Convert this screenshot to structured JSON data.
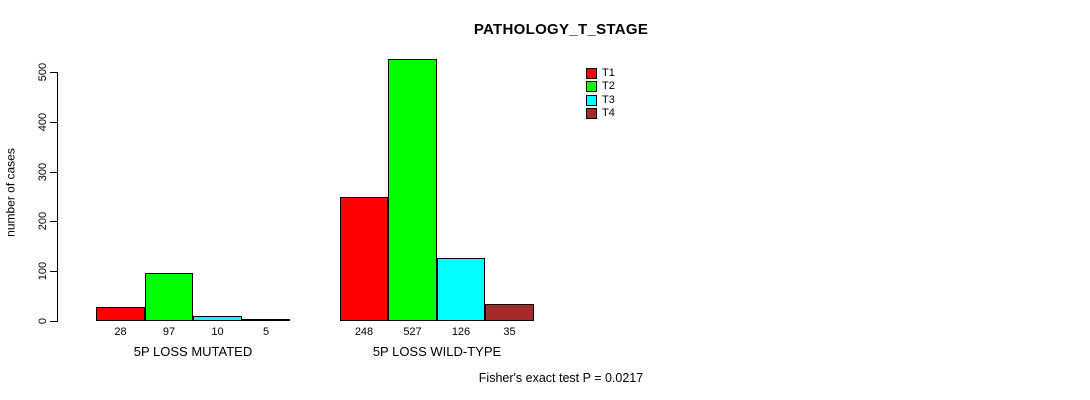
{
  "chart_data": {
    "type": "bar",
    "title": "PATHOLOGY_T_STAGE",
    "xlabel": "",
    "ylabel": "number of cases",
    "ylim": [
      0,
      500
    ],
    "yticks": [
      0,
      100,
      200,
      300,
      400,
      500
    ],
    "grid": false,
    "legend_position": "top-right",
    "categories": [
      "5P LOSS MUTATED",
      "5P LOSS WILD-TYPE"
    ],
    "series": [
      {
        "name": "T1",
        "color": "#FF0000",
        "values": [
          28,
          248
        ]
      },
      {
        "name": "T2",
        "color": "#00FF00",
        "values": [
          97,
          527
        ]
      },
      {
        "name": "T3",
        "color": "#00FFFF",
        "values": [
          10,
          126
        ]
      },
      {
        "name": "T4",
        "color": "#A52A2A",
        "values": [
          5,
          35
        ]
      }
    ],
    "bar_value_labels": [
      [
        "28",
        "97",
        "10",
        "5"
      ],
      [
        "248",
        "527",
        "126",
        "35"
      ]
    ],
    "annotation": "Fisher's exact test P = 0.0217"
  }
}
